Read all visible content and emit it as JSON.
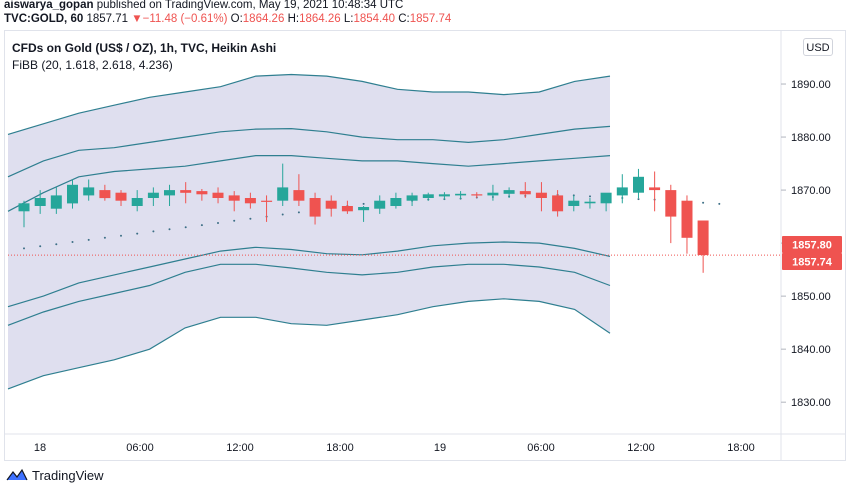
{
  "header": {
    "author": "aiswarya_gopan",
    "published_text": "published on TradingView.com, May 19, 2021 10:48:34 UTC",
    "symbol": "TVC:GOLD, 60",
    "last_price": "1857.71",
    "change_arrow": "▼",
    "change": "−11.48 (−0.61%)",
    "o_label": "O:",
    "open": "1864.26",
    "h_label": "H:",
    "high": "1864.26",
    "l_label": "L:",
    "low": "1854.40",
    "c_label": "C:",
    "close": "1857.74"
  },
  "chart_title": "CFDs on Gold (US$ / OZ), 1h, TVC, Heikin Ashi",
  "indicator": "FiBB (20, 1.618, 2.618, 4.236)",
  "currency_button": "USD",
  "brand": "TradingView",
  "colors": {
    "up": "#26a69a",
    "down": "#ef5350",
    "band_fill": "#d9d9ec",
    "band_line": "#2f7f90"
  },
  "chart_data": {
    "type": "candlestick",
    "title": "CFDs on Gold (US$ / OZ), 1h, TVC, Heikin Ashi",
    "ylim": [
      1824,
      1900
    ],
    "y_ticks": [
      "1890.00",
      "1880.00",
      "1870.00",
      "1860.00",
      "1850.00",
      "1840.00",
      "1830.00"
    ],
    "x_ticks": [
      "18",
      "06:00",
      "12:00",
      "18:00",
      "19",
      "06:00",
      "12:00",
      "18:00"
    ],
    "price_labels": [
      {
        "text": "1857.80",
        "value": 1857.8
      },
      {
        "text": "1857.74",
        "value": 1857.74
      }
    ],
    "candles": [
      {
        "o": 1866.0,
        "h": 1868.0,
        "l": 1863.0,
        "c": 1867.5
      },
      {
        "o": 1867.0,
        "h": 1870.0,
        "l": 1865.5,
        "c": 1868.5
      },
      {
        "o": 1866.5,
        "h": 1870.5,
        "l": 1865.5,
        "c": 1869.0
      },
      {
        "o": 1867.5,
        "h": 1872.0,
        "l": 1866.5,
        "c": 1871.0
      },
      {
        "o": 1869.0,
        "h": 1872.0,
        "l": 1868.0,
        "c": 1870.5
      },
      {
        "o": 1870.0,
        "h": 1871.0,
        "l": 1868.0,
        "c": 1868.5
      },
      {
        "o": 1869.5,
        "h": 1870.0,
        "l": 1867.0,
        "c": 1868.0
      },
      {
        "o": 1867.0,
        "h": 1870.0,
        "l": 1866.0,
        "c": 1868.5
      },
      {
        "o": 1868.5,
        "h": 1870.5,
        "l": 1867.0,
        "c": 1869.5
      },
      {
        "o": 1869.0,
        "h": 1871.0,
        "l": 1867.0,
        "c": 1870.0
      },
      {
        "o": 1870.0,
        "h": 1871.5,
        "l": 1867.5,
        "c": 1869.5
      },
      {
        "o": 1869.8,
        "h": 1870.2,
        "l": 1868.0,
        "c": 1869.2
      },
      {
        "o": 1869.5,
        "h": 1870.5,
        "l": 1867.5,
        "c": 1868.5
      },
      {
        "o": 1869.0,
        "h": 1869.8,
        "l": 1866.0,
        "c": 1868.0
      },
      {
        "o": 1868.5,
        "h": 1869.5,
        "l": 1866.5,
        "c": 1867.5
      },
      {
        "o": 1868.0,
        "h": 1869.0,
        "l": 1864.0,
        "c": 1867.9
      },
      {
        "o": 1868.0,
        "h": 1875.0,
        "l": 1867.0,
        "c": 1870.5
      },
      {
        "o": 1870.0,
        "h": 1873.0,
        "l": 1867.0,
        "c": 1868.0
      },
      {
        "o": 1868.5,
        "h": 1869.5,
        "l": 1863.5,
        "c": 1865.0
      },
      {
        "o": 1868.0,
        "h": 1869.0,
        "l": 1865.0,
        "c": 1866.5
      },
      {
        "o": 1867.0,
        "h": 1868.0,
        "l": 1865.5,
        "c": 1866.0
      },
      {
        "o": 1866.2,
        "h": 1867.0,
        "l": 1864.0,
        "c": 1866.8
      },
      {
        "o": 1866.5,
        "h": 1869.0,
        "l": 1865.5,
        "c": 1868.0
      },
      {
        "o": 1867.0,
        "h": 1869.5,
        "l": 1866.5,
        "c": 1868.5
      },
      {
        "o": 1868.0,
        "h": 1869.5,
        "l": 1867.0,
        "c": 1869.0
      },
      {
        "o": 1868.5,
        "h": 1869.5,
        "l": 1868.0,
        "c": 1869.2
      },
      {
        "o": 1868.8,
        "h": 1869.6,
        "l": 1868.2,
        "c": 1869.2
      },
      {
        "o": 1869.0,
        "h": 1869.8,
        "l": 1868.3,
        "c": 1869.3
      },
      {
        "o": 1869.2,
        "h": 1869.6,
        "l": 1868.5,
        "c": 1869.0
      },
      {
        "o": 1869.0,
        "h": 1871.0,
        "l": 1868.0,
        "c": 1869.5
      },
      {
        "o": 1869.3,
        "h": 1870.5,
        "l": 1868.5,
        "c": 1870.0
      },
      {
        "o": 1869.8,
        "h": 1871.5,
        "l": 1868.5,
        "c": 1869.2
      },
      {
        "o": 1869.5,
        "h": 1871.5,
        "l": 1866.0,
        "c": 1868.5
      },
      {
        "o": 1869.0,
        "h": 1870.0,
        "l": 1865.0,
        "c": 1866.0
      },
      {
        "o": 1867.0,
        "h": 1869.0,
        "l": 1866.0,
        "c": 1868.0
      },
      {
        "o": 1867.5,
        "h": 1868.5,
        "l": 1866.5,
        "c": 1867.8
      },
      {
        "o": 1867.5,
        "h": 1869.0,
        "l": 1866.0,
        "c": 1869.5
      },
      {
        "o": 1869.0,
        "h": 1873.0,
        "l": 1867.5,
        "c": 1870.5
      },
      {
        "o": 1869.5,
        "h": 1874.0,
        "l": 1868.5,
        "c": 1872.5
      },
      {
        "o": 1870.5,
        "h": 1873.5,
        "l": 1866.0,
        "c": 1870.0
      },
      {
        "o": 1870.0,
        "h": 1871.0,
        "l": 1860.0,
        "c": 1865.0
      },
      {
        "o": 1868.0,
        "h": 1869.0,
        "l": 1858.0,
        "c": 1861.0
      },
      {
        "o": 1864.26,
        "h": 1864.26,
        "l": 1854.4,
        "c": 1857.74
      }
    ],
    "bands": {
      "upper_outer": [
        1880.5,
        1882.5,
        1884.5,
        1886.0,
        1887.5,
        1888.5,
        1889.5,
        1891.5,
        1891.8,
        1891.5,
        1890.5,
        1889.0,
        1888.5,
        1888.5,
        1888.0,
        1888.5,
        1890.5,
        1891.5
      ],
      "upper_mid": [
        1872.5,
        1875.5,
        1877.5,
        1878.0,
        1879.0,
        1880.0,
        1881.0,
        1881.5,
        1881.6,
        1881.0,
        1880.0,
        1879.5,
        1879.5,
        1879.0,
        1879.5,
        1880.5,
        1881.5,
        1882.0
      ],
      "upper_inner": [
        1866.0,
        1869.5,
        1872.5,
        1873.5,
        1874.0,
        1874.5,
        1875.5,
        1876.5,
        1876.5,
        1876.0,
        1875.5,
        1875.5,
        1875.0,
        1874.5,
        1875.0,
        1875.5,
        1876.0,
        1876.5
      ],
      "lower_inner": [
        1848.0,
        1850.0,
        1852.5,
        1854.0,
        1855.5,
        1857.0,
        1858.5,
        1859.2,
        1858.8,
        1858.0,
        1857.8,
        1858.5,
        1859.5,
        1860.0,
        1860.2,
        1860.0,
        1859.0,
        1857.5
      ],
      "lower_mid": [
        1844.5,
        1847.0,
        1849.0,
        1850.5,
        1852.0,
        1854.5,
        1856.0,
        1856.0,
        1855.3,
        1854.5,
        1854.0,
        1854.5,
        1855.5,
        1856.0,
        1856.0,
        1855.5,
        1854.5,
        1852.0
      ],
      "lower_outer": [
        1832.5,
        1835.0,
        1836.5,
        1838.0,
        1840.0,
        1844.0,
        1846.0,
        1846.0,
        1844.8,
        1844.5,
        1845.5,
        1846.5,
        1848.0,
        1849.0,
        1849.5,
        1849.0,
        1847.5,
        1843.0
      ]
    },
    "psar": [
      1859.0,
      1859.4,
      1859.8,
      1860.2,
      1860.6,
      1861.0,
      1861.4,
      1861.8,
      1862.2,
      1862.6,
      1863.0,
      1863.4,
      1863.8,
      1864.2,
      1864.6,
      1865.0,
      1865.4,
      1865.8,
      1866.2,
      1866.6,
      1867.0,
      1867.4,
      1867.6,
      1867.8,
      1868.0,
      1868.2,
      1868.3,
      1868.4,
      1868.6,
      1868.7,
      1868.8,
      1868.9,
      1869.0,
      1869.1,
      1869.0,
      1868.8,
      1868.7,
      1868.5,
      1868.3,
      1868.2,
      1868.0,
      1867.8,
      1867.6,
      1867.4
    ]
  }
}
